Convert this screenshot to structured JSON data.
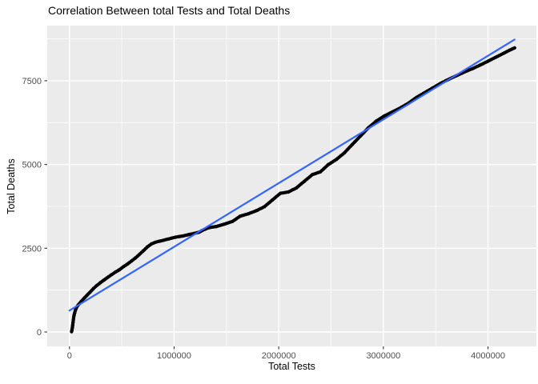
{
  "title": "Correlation Between total Tests and Total Deaths",
  "chart_data": {
    "type": "scatter",
    "title": "Correlation Between total Tests and Total Deaths",
    "xlabel": "Total Tests",
    "ylabel": "Total Deaths",
    "x_ticks": [
      0,
      1000000,
      2000000,
      3000000,
      4000000
    ],
    "x_tick_labels": [
      "0",
      "1000000",
      "2000000",
      "3000000",
      "4000000"
    ],
    "y_ticks": [
      0,
      2500,
      5000,
      7500
    ],
    "y_tick_labels": [
      "0",
      "2500",
      "5000",
      "7500"
    ],
    "x_minor_ticks": [
      500000,
      1500000,
      2500000,
      3500000
    ],
    "y_minor_ticks": [
      1250,
      3750,
      6250,
      8750
    ],
    "xlim": [
      -212500,
      4462500
    ],
    "ylim": [
      -430,
      9146
    ],
    "grid": true,
    "legend_position": "none",
    "panel_bg": "#EBEBEB",
    "grid_color": "#FFFFFF",
    "tick_label_color": "#4d4d4d",
    "point_color": "#000000",
    "smooth_line": {
      "color": "#3366FF",
      "x1": 0,
      "y1": 640,
      "x2": 4254000,
      "y2": 8730
    },
    "points": [
      [
        20000,
        10
      ],
      [
        24000,
        60
      ],
      [
        28000,
        130
      ],
      [
        31000,
        200
      ],
      [
        34000,
        280
      ],
      [
        37000,
        360
      ],
      [
        40000,
        430
      ],
      [
        44000,
        500
      ],
      [
        50000,
        570
      ],
      [
        57000,
        650
      ],
      [
        68000,
        740
      ],
      [
        82000,
        800
      ],
      [
        96000,
        850
      ],
      [
        120000,
        940
      ],
      [
        147000,
        1030
      ],
      [
        172000,
        1110
      ],
      [
        197000,
        1190
      ],
      [
        230000,
        1300
      ],
      [
        262000,
        1390
      ],
      [
        295000,
        1470
      ],
      [
        325000,
        1540
      ],
      [
        365000,
        1630
      ],
      [
        402000,
        1710
      ],
      [
        440000,
        1790
      ],
      [
        478000,
        1860
      ],
      [
        516000,
        1950
      ],
      [
        555000,
        2030
      ],
      [
        593000,
        2120
      ],
      [
        631000,
        2210
      ],
      [
        670000,
        2320
      ],
      [
        708000,
        2430
      ],
      [
        745000,
        2540
      ],
      [
        784000,
        2630
      ],
      [
        822000,
        2680
      ],
      [
        861000,
        2710
      ],
      [
        900000,
        2740
      ],
      [
        937000,
        2770
      ],
      [
        975000,
        2800
      ],
      [
        1014000,
        2830
      ],
      [
        1052000,
        2850
      ],
      [
        1090000,
        2870
      ],
      [
        1141000,
        2910
      ],
      [
        1190000,
        2940
      ],
      [
        1240000,
        2980
      ],
      [
        1268000,
        3030
      ],
      [
        1327000,
        3110
      ],
      [
        1404000,
        3150
      ],
      [
        1480000,
        3220
      ],
      [
        1557000,
        3300
      ],
      [
        1633000,
        3460
      ],
      [
        1710000,
        3530
      ],
      [
        1786000,
        3620
      ],
      [
        1863000,
        3740
      ],
      [
        1939000,
        3940
      ],
      [
        2016000,
        4140
      ],
      [
        2092000,
        4180
      ],
      [
        2169000,
        4300
      ],
      [
        2245000,
        4500
      ],
      [
        2322000,
        4700
      ],
      [
        2398000,
        4780
      ],
      [
        2475000,
        5000
      ],
      [
        2551000,
        5150
      ],
      [
        2628000,
        5350
      ],
      [
        2704000,
        5600
      ],
      [
        2781000,
        5850
      ],
      [
        2858000,
        6100
      ],
      [
        2934000,
        6300
      ],
      [
        3010000,
        6450
      ],
      [
        3087000,
        6570
      ],
      [
        3163000,
        6690
      ],
      [
        3240000,
        6830
      ],
      [
        3316000,
        7000
      ],
      [
        3392000,
        7140
      ],
      [
        3469000,
        7280
      ],
      [
        3545000,
        7420
      ],
      [
        3622000,
        7540
      ],
      [
        3698000,
        7650
      ],
      [
        3774000,
        7760
      ],
      [
        3851000,
        7860
      ],
      [
        3927000,
        7970
      ],
      [
        4004000,
        8090
      ],
      [
        4080000,
        8210
      ],
      [
        4156000,
        8330
      ],
      [
        4205000,
        8410
      ],
      [
        4254000,
        8480
      ]
    ]
  }
}
